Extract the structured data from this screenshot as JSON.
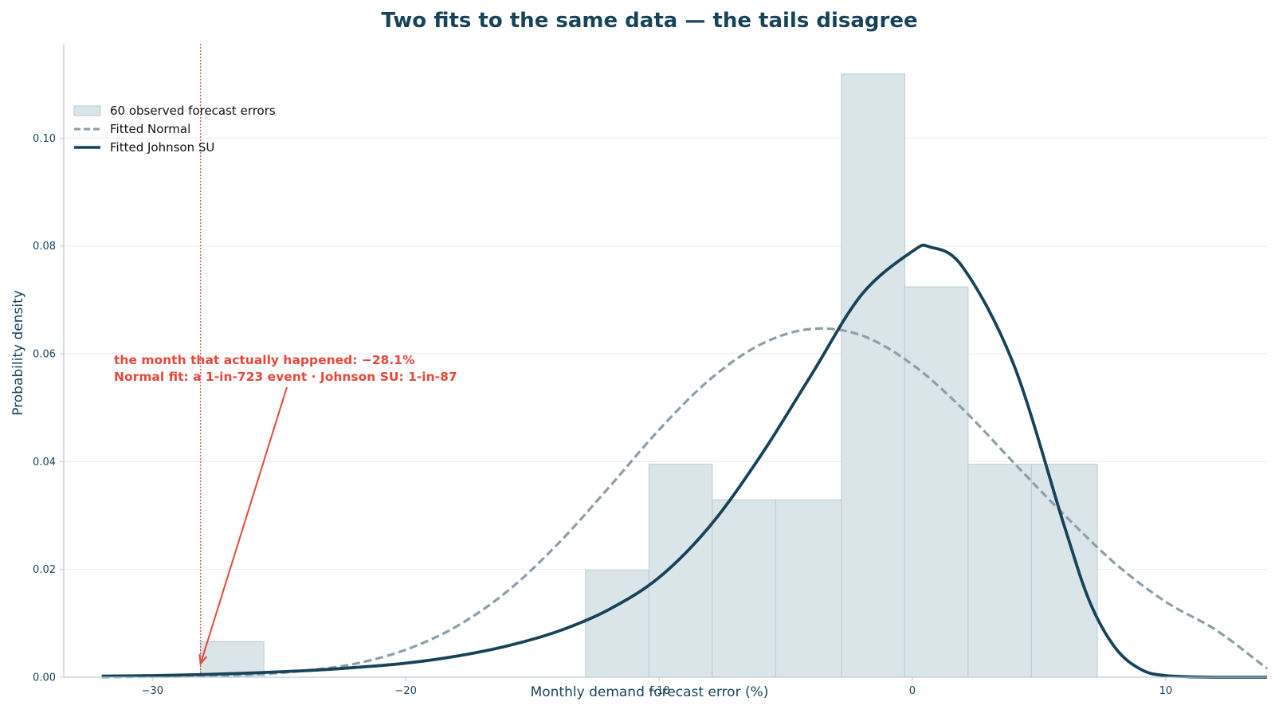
{
  "chart_data": {
    "type": "histogram",
    "title": "Two fits to the same data — the tails disagree",
    "xlabel": "Monthly demand forecast error  (%)",
    "ylabel": "Probability density",
    "xlim": [
      -33.5,
      14
    ],
    "ylim": [
      0,
      0.1175
    ],
    "x_ticks": [
      -30,
      -20,
      -10,
      0,
      10
    ],
    "x_tick_labels": [
      "−30",
      "−20",
      "−10",
      "0",
      "10"
    ],
    "y_ticks": [
      0.0,
      0.02,
      0.04,
      0.06,
      0.08,
      0.1
    ],
    "y_tick_labels": [
      "0.00",
      "0.02",
      "0.04",
      "0.06",
      "0.08",
      "0.10"
    ],
    "grid": "horizontal",
    "legend_placement": "upper-left",
    "colors": {
      "title": "#17435a",
      "histogram_fill": "#dae5ea",
      "histogram_edge": "#b9c9d1",
      "normal": "#8a9fa8",
      "johnson": "#17435a",
      "annotation": "#e5483a",
      "grid": "#ececec",
      "axis": "#b9c9d1"
    },
    "histogram": {
      "name": "60 observed forecast errors",
      "bins": [
        {
          "left": -28.1,
          "right": -25.6,
          "density": 0.0066
        },
        {
          "left": -12.9,
          "right": -10.4,
          "density": 0.0198
        },
        {
          "left": -10.4,
          "right": -7.9,
          "density": 0.0395
        },
        {
          "left": -7.9,
          "right": -5.4,
          "density": 0.0329
        },
        {
          "left": -5.4,
          "right": -2.8,
          "density": 0.0329
        },
        {
          "left": -2.8,
          "right": -0.3,
          "density": 0.1119
        },
        {
          "left": -0.3,
          "right": 2.2,
          "density": 0.0724
        },
        {
          "left": 2.2,
          "right": 4.7,
          "density": 0.0395
        },
        {
          "left": 4.7,
          "right": 7.3,
          "density": 0.0395
        }
      ]
    },
    "series": [
      {
        "name": "Fitted Normal",
        "style": "dashed",
        "x": [
          -32,
          -30,
          -28,
          -26,
          -24,
          -22,
          -20,
          -18,
          -16,
          -14,
          -12,
          -10,
          -8,
          -6,
          -4,
          -2,
          0,
          2,
          4,
          6,
          8,
          10,
          12,
          14
        ],
        "y": [
          0.0,
          0.0001,
          0.0002,
          0.0005,
          0.0012,
          0.0025,
          0.0051,
          0.0094,
          0.0159,
          0.0247,
          0.0351,
          0.0459,
          0.0552,
          0.0617,
          0.0646,
          0.0634,
          0.058,
          0.0497,
          0.0398,
          0.0301,
          0.0211,
          0.014,
          0.0087,
          0.0016
        ]
      },
      {
        "name": "Fitted Johnson SU",
        "style": "solid",
        "x": [
          -32,
          -30,
          -28,
          -26,
          -24,
          -22,
          -20,
          -18,
          -16,
          -14,
          -12,
          -10,
          -8,
          -6,
          -4,
          -2,
          0,
          0.7,
          2,
          4,
          6,
          7,
          8,
          9,
          10,
          12,
          14
        ],
        "y": [
          0.0002,
          0.0003,
          0.0005,
          0.0008,
          0.0012,
          0.0018,
          0.0026,
          0.0039,
          0.0058,
          0.0085,
          0.0125,
          0.0185,
          0.028,
          0.041,
          0.056,
          0.071,
          0.079,
          0.0798,
          0.076,
          0.058,
          0.028,
          0.014,
          0.0055,
          0.0015,
          0.0003,
          0.0,
          0.0
        ]
      }
    ],
    "annotation": {
      "line1": "the month that actually happened:  −28.1%",
      "line2": "Normal fit: a 1-in-723 event · Johnson SU: 1-in-87",
      "x": -28.1,
      "arrow_target_y": 0.0025
    }
  }
}
